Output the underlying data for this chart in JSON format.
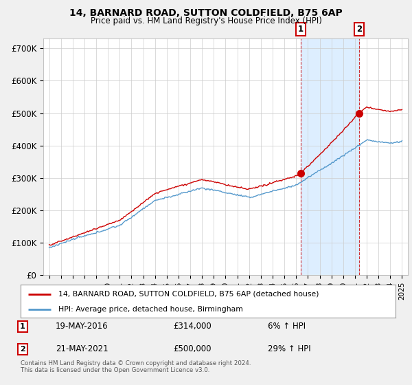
{
  "title": "14, BARNARD ROAD, SUTTON COLDFIELD, B75 6AP",
  "subtitle": "Price paid vs. HM Land Registry's House Price Index (HPI)",
  "hpi_label": "HPI: Average price, detached house, Birmingham",
  "property_label": "14, BARNARD ROAD, SUTTON COLDFIELD, B75 6AP (detached house)",
  "sale1_date": "19-MAY-2016",
  "sale1_price": 314000,
  "sale1_hpi": "6% ↑ HPI",
  "sale2_date": "21-MAY-2021",
  "sale2_price": 500000,
  "sale2_hpi": "29% ↑ HPI",
  "footer": "Contains HM Land Registry data © Crown copyright and database right 2024.\nThis data is licensed under the Open Government Licence v3.0.",
  "property_color": "#cc0000",
  "hpi_color": "#5599cc",
  "shade_color": "#ddeeff",
  "sale1_x": 2016.38,
  "sale2_x": 2021.38,
  "ylim_min": 0,
  "ylim_max": 730000,
  "xlim_min": 1994.5,
  "xlim_max": 2025.5,
  "yticks": [
    0,
    100000,
    200000,
    300000,
    400000,
    500000,
    600000,
    700000
  ],
  "ytick_labels": [
    "£0",
    "£100K",
    "£200K",
    "£300K",
    "£400K",
    "£500K",
    "£600K",
    "£700K"
  ],
  "xticks": [
    1995,
    1996,
    1997,
    1998,
    1999,
    2000,
    2001,
    2002,
    2003,
    2004,
    2005,
    2006,
    2007,
    2008,
    2009,
    2010,
    2011,
    2012,
    2013,
    2014,
    2015,
    2016,
    2017,
    2018,
    2019,
    2020,
    2021,
    2022,
    2023,
    2024,
    2025
  ],
  "background_color": "#f0f0f0",
  "plot_bg_color": "#ffffff"
}
